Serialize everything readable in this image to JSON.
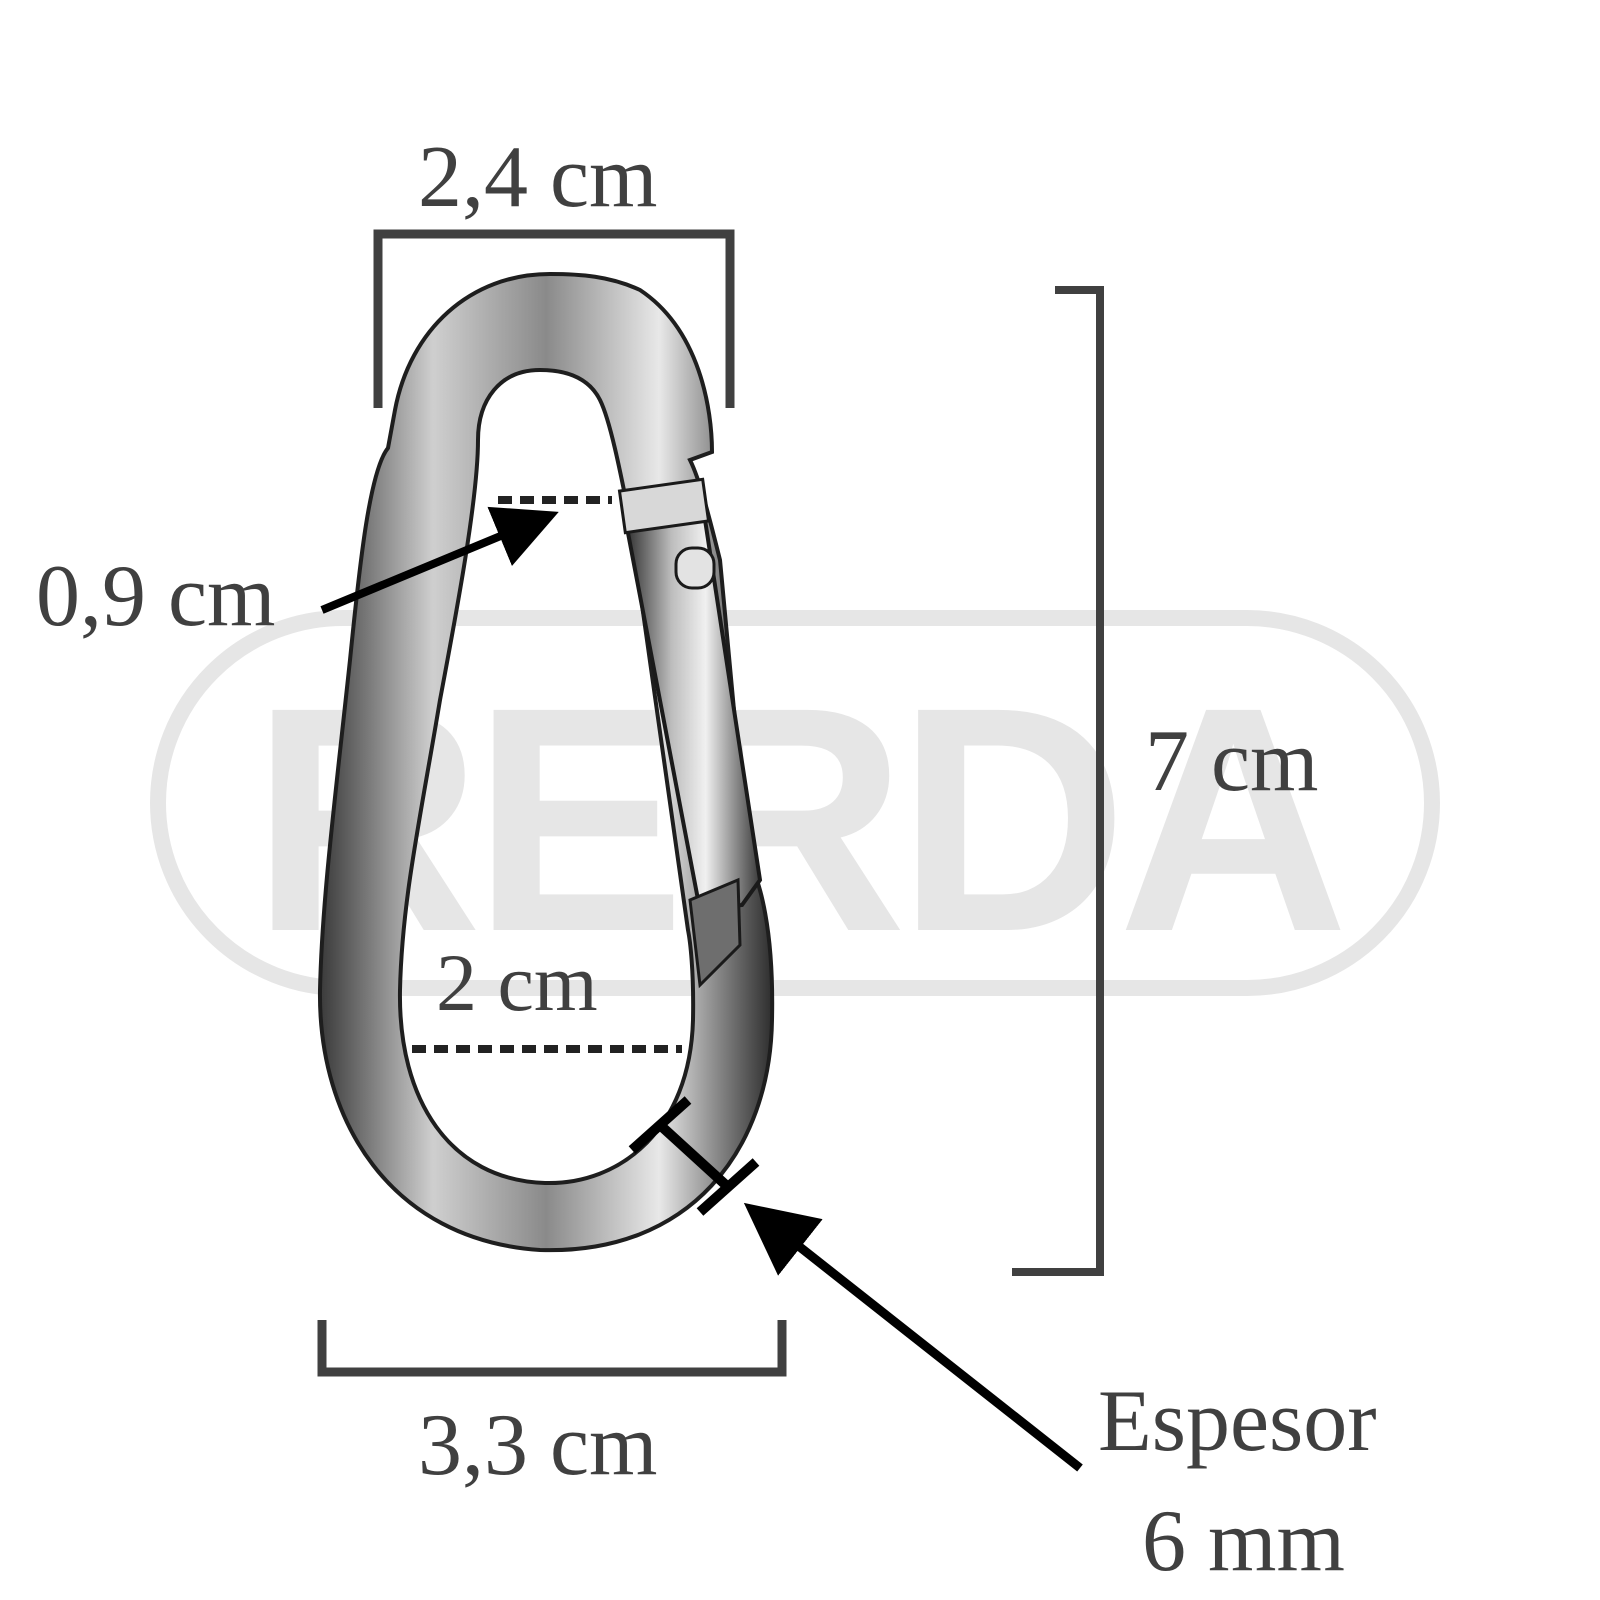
{
  "watermark": {
    "text": "RERDA"
  },
  "dimensions": {
    "top_width": "2,4 cm",
    "gap_width": "0,9 cm",
    "height": "7 cm",
    "inner_width": "2 cm",
    "bottom_width": "3,3 cm",
    "thickness_label": "Espesor",
    "thickness_value": "6 mm"
  },
  "colors": {
    "dimension_lines": "#404040",
    "leader_arrows": "#000000",
    "watermark": "#e6e6e6",
    "metal_dark": "#2b2b2b",
    "metal_light": "#d9d9d9"
  }
}
